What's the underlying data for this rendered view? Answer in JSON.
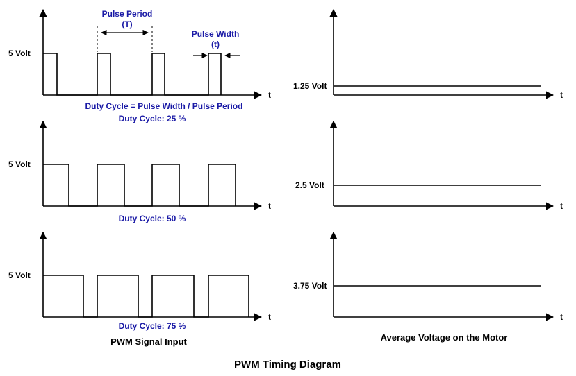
{
  "title": "PWM Timing Diagram",
  "left_caption": "PWM Signal Input",
  "right_caption": "Average Voltage on the Motor",
  "axis_label": "t",
  "high_label": "5 Volt",
  "annotations": {
    "pulse_period": "Pulse Period",
    "pulse_period_symbol": "(T)",
    "pulse_width": "Pulse Width",
    "pulse_width_symbol": "(t)",
    "formula": "Duty Cycle = Pulse Width / Pulse Period"
  },
  "rows": [
    {
      "duty_label": "Duty Cycle: 25 %",
      "duty": 0.25,
      "avg_label": "1.25 Volt",
      "avg_volts": 1.25
    },
    {
      "duty_label": "Duty Cycle: 50 %",
      "duty": 0.5,
      "avg_label": "2.5 Volt",
      "avg_volts": 2.5
    },
    {
      "duty_label": "Duty Cycle: 75 %",
      "duty": 0.75,
      "avg_label": "3.75 Volt",
      "avg_volts": 3.75
    }
  ],
  "colors": {
    "annotation": "#1a1aa6",
    "line": "#000000"
  }
}
